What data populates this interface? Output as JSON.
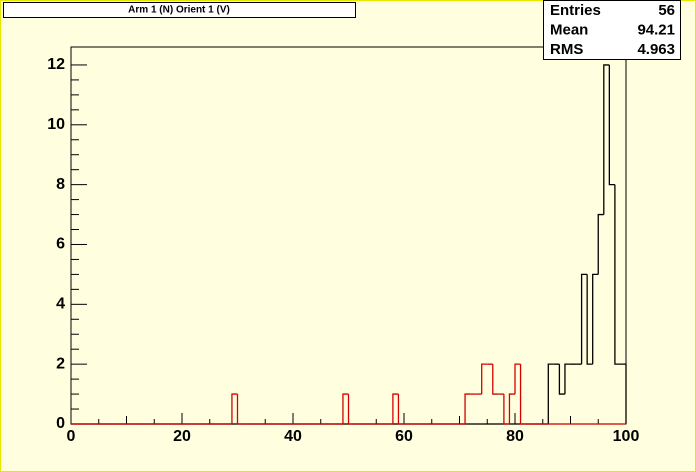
{
  "chart_data": {
    "type": "histogram",
    "title": "Arm 1 (N) Orient 1 (V)",
    "stats": [
      {
        "label": "Entries",
        "value": 56
      },
      {
        "label": "Mean",
        "value": 94.21
      },
      {
        "label": "RMS",
        "value": 4.963
      }
    ],
    "bins": [
      0,
      1,
      2,
      3,
      4,
      5,
      6,
      7,
      8,
      9,
      10,
      11,
      12,
      13,
      14,
      15,
      16,
      17,
      18,
      19,
      20,
      21,
      22,
      23,
      24,
      25,
      26,
      27,
      28,
      29,
      30,
      31,
      32,
      33,
      34,
      35,
      36,
      37,
      38,
      39,
      40,
      41,
      42,
      43,
      44,
      45,
      46,
      47,
      48,
      49,
      50,
      51,
      52,
      53,
      54,
      55,
      56,
      57,
      58,
      59,
      60,
      61,
      62,
      63,
      64,
      65,
      66,
      67,
      68,
      69,
      70,
      71,
      72,
      73,
      74,
      75,
      76,
      77,
      78,
      79,
      80,
      81,
      82,
      83,
      84,
      85,
      86,
      87,
      88,
      89,
      90,
      91,
      92,
      93,
      94,
      95,
      96,
      97,
      98,
      99,
      100
    ],
    "series": [
      {
        "color": "#000000",
        "values": [
          0,
          0,
          0,
          0,
          0,
          0,
          0,
          0,
          0,
          0,
          0,
          0,
          0,
          0,
          0,
          0,
          0,
          0,
          0,
          0,
          0,
          0,
          0,
          0,
          0,
          0,
          0,
          0,
          0,
          0,
          0,
          0,
          0,
          0,
          0,
          0,
          0,
          0,
          0,
          0,
          0,
          0,
          0,
          0,
          0,
          0,
          0,
          0,
          0,
          0,
          0,
          0,
          0,
          0,
          0,
          0,
          0,
          0,
          0,
          0,
          0,
          0,
          0,
          0,
          0,
          0,
          0,
          0,
          0,
          0,
          0,
          0,
          0,
          0,
          0,
          0,
          0,
          0,
          0,
          0,
          0,
          0,
          0,
          0,
          0,
          0,
          2,
          2,
          1,
          2,
          2,
          2,
          5,
          2,
          5,
          7,
          12,
          8,
          2,
          2
        ]
      },
      {
        "color": "#d40000",
        "values": [
          0,
          0,
          0,
          0,
          0,
          0,
          0,
          0,
          0,
          0,
          0,
          0,
          0,
          0,
          0,
          0,
          0,
          0,
          0,
          0,
          0,
          0,
          0,
          0,
          0,
          0,
          0,
          0,
          0,
          1,
          0,
          0,
          0,
          0,
          0,
          0,
          0,
          0,
          0,
          0,
          0,
          0,
          0,
          0,
          0,
          0,
          0,
          0,
          0,
          1,
          0,
          0,
          0,
          0,
          0,
          0,
          0,
          0,
          1,
          0,
          0,
          0,
          0,
          0,
          0,
          0,
          0,
          0,
          0,
          0,
          0,
          1,
          1,
          1,
          2,
          2,
          1,
          1,
          0,
          1,
          2,
          0,
          0,
          0,
          0,
          0,
          0,
          0,
          0,
          0,
          0,
          0,
          0,
          0,
          0,
          0,
          0,
          0,
          0,
          0
        ]
      }
    ],
    "xlim": [
      0,
      100
    ],
    "ylim": [
      0,
      12.6
    ],
    "xticks": [
      0,
      20,
      40,
      60,
      80,
      100
    ],
    "yticks": [
      0,
      2,
      4,
      6,
      8,
      10,
      12
    ]
  }
}
